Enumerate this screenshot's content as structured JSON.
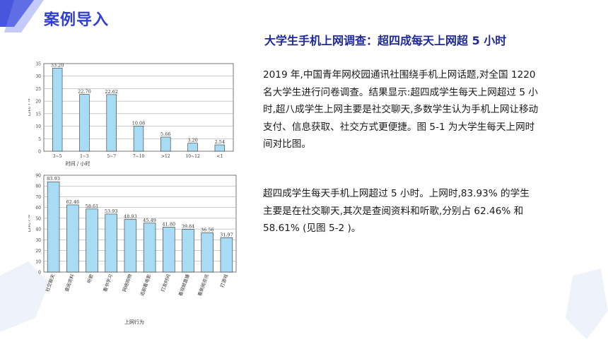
{
  "page": {
    "title": "案例导入",
    "heading": "大学生手机上网调查：超四成每天上网超 5 小时",
    "paragraph1": "2019 年,中国青年网校园通讯社围绕手机上网话题,对全国 1220 名大学生进行问卷调查。结果显示:超四成学生每天上网超过 5 小时,超八成学生上网主要是社交聊天,多数学生认为手机上网让移动支付、信息获取、社交方式更便捷。图 5-1 为大学生每天上网时间对比图。",
    "paragraph2": "超四成学生每天手机上网超过 5 小时。上网时,83.93% 的学生主要是在社交聊天,其次是查阅资料和听歌,分别占 62.46% 和 58.61% (见图 5-2 )。"
  },
  "colors": {
    "accent": "#2f3fd6",
    "bar_fill": "#a8dcf4",
    "bar_stroke": "#333333"
  },
  "chart_data": [
    {
      "type": "bar",
      "categories": [
        "3~5",
        "1~3",
        "5~7",
        "7~10",
        ">12",
        "10~12",
        "<1"
      ],
      "values": [
        33.2,
        22.7,
        22.62,
        10.08,
        5.66,
        3.2,
        2.54
      ],
      "labels": [
        "33.20",
        "22.70",
        "22.62",
        "10.08",
        "5.66",
        "3.20",
        "2.54"
      ],
      "xlabel": "时间 / 小时",
      "ylabel": "占比 /%",
      "ylim": [
        0,
        35
      ],
      "yticks": [
        0,
        5,
        10,
        15,
        20,
        25,
        30,
        35
      ],
      "grid": true
    },
    {
      "type": "bar",
      "categories": [
        "社交聊天",
        "查阅资料",
        "听歌",
        "看书学习",
        "网络购物",
        "追剧看电影",
        "打发时间",
        "看视频直播",
        "看新闻资讯",
        "打游戏"
      ],
      "values": [
        83.93,
        62.46,
        58.61,
        53.93,
        48.93,
        45.49,
        41.8,
        39.84,
        36.56,
        31.97
      ],
      "labels": [
        "83.93",
        "62.46",
        "58.61",
        "53.93",
        "48.93",
        "45.49",
        "41.80",
        "39.84",
        "36.56",
        "31.97"
      ],
      "xlabel": "上网行为",
      "ylabel": "占比 /%",
      "ylim": [
        0,
        90
      ],
      "yticks": [
        0,
        10,
        20,
        30,
        40,
        50,
        60,
        70,
        80,
        90
      ],
      "grid": true
    }
  ]
}
